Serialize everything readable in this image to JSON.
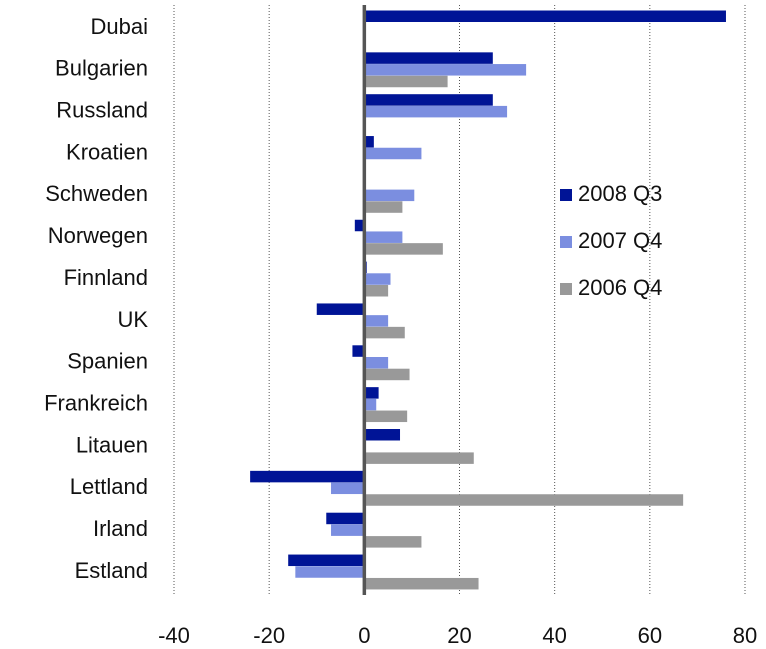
{
  "chart_data": {
    "type": "bar",
    "orientation": "horizontal",
    "categories": [
      "Dubai",
      "Bulgarien",
      "Russland",
      "Kroatien",
      "Schweden",
      "Norwegen",
      "Finnland",
      "UK",
      "Spanien",
      "Frankreich",
      "Litauen",
      "Lettland",
      "Irland",
      "Estland"
    ],
    "series": [
      {
        "name": "2008 Q3",
        "color": "#001496",
        "values": [
          76,
          27,
          27,
          2,
          null,
          -2,
          0.5,
          -10,
          -2.5,
          3,
          7.5,
          -24,
          -8,
          -16
        ]
      },
      {
        "name": "2007 Q4",
        "color": "#7b8ee0",
        "values": [
          null,
          34,
          30,
          12,
          10.5,
          8,
          5.5,
          5,
          5,
          2.5,
          null,
          -7,
          -7,
          -14.5
        ]
      },
      {
        "name": "2006 Q4",
        "color": "#999999",
        "values": [
          null,
          17.5,
          null,
          null,
          8,
          16.5,
          5,
          8.5,
          9.5,
          9,
          23,
          67,
          12,
          24
        ]
      }
    ],
    "xlim": [
      -40,
      80
    ],
    "xticks": [
      -40,
      -20,
      0,
      20,
      40,
      60,
      80
    ],
    "grid": true,
    "legend": "right"
  }
}
